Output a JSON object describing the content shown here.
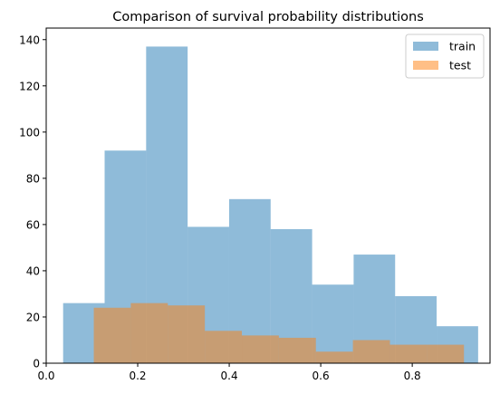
{
  "chart_data": {
    "type": "bar",
    "title": "Comparison of survival probability distributions",
    "xlabel": "",
    "ylabel": "",
    "xlim": [
      0.0,
      0.97
    ],
    "ylim": [
      0,
      145
    ],
    "x_ticks": [
      0.0,
      0.2,
      0.4,
      0.6,
      0.8
    ],
    "x_tick_labels": [
      "0.0",
      "0.2",
      "0.4",
      "0.6",
      "0.8"
    ],
    "y_ticks": [
      0,
      20,
      40,
      60,
      80,
      100,
      120,
      140
    ],
    "y_tick_labels": [
      "0",
      "20",
      "40",
      "60",
      "80",
      "100",
      "120",
      "140"
    ],
    "grid": false,
    "legend_position": "top-right",
    "series": [
      {
        "name": "train",
        "color": "#1f77b4",
        "alpha": 0.5,
        "bin_edges": [
          0.037,
          0.1277,
          0.2184,
          0.3091,
          0.3998,
          0.4905,
          0.5812,
          0.6719,
          0.7626,
          0.8533,
          0.944
        ],
        "counts": [
          26,
          92,
          137,
          59,
          71,
          58,
          34,
          47,
          29,
          16
        ]
      },
      {
        "name": "test",
        "color": "#ff7f0e",
        "alpha": 0.5,
        "bin_edges": [
          0.104,
          0.1849,
          0.2658,
          0.3467,
          0.4276,
          0.5085,
          0.5894,
          0.6703,
          0.7512,
          0.8321,
          0.913
        ],
        "counts": [
          24,
          26,
          25,
          14,
          12,
          11,
          5,
          10,
          8,
          8
        ]
      }
    ]
  }
}
